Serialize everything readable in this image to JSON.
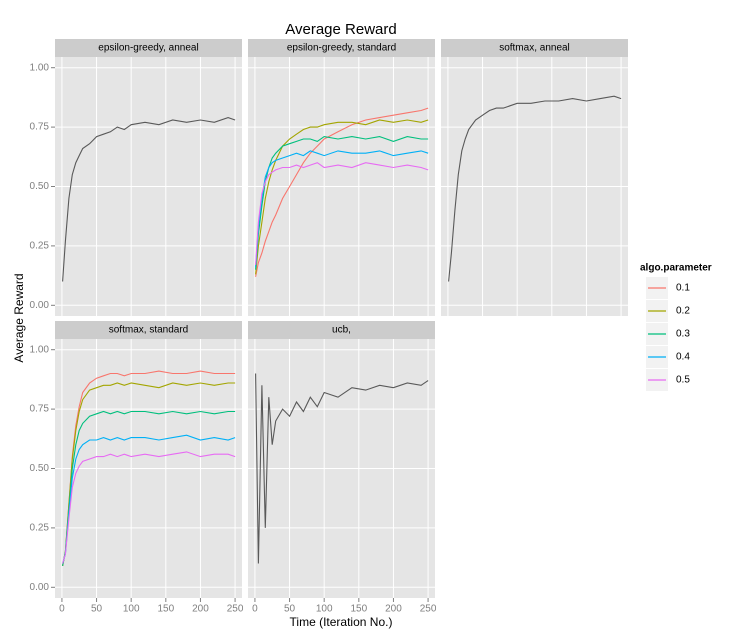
{
  "title": "Average Reward",
  "x_label": "Time (Iteration No.)",
  "y_label": "Average Reward",
  "legend_title": "algo.parameter",
  "legend": "right",
  "grid": true,
  "xlim": [
    -10,
    260
  ],
  "xticks": [
    0,
    50,
    100,
    150,
    200,
    250
  ],
  "ylim": [
    -0.045,
    1.045
  ],
  "yticks": [
    {
      "value": 0,
      "label": "0.00"
    },
    {
      "value": 0.25,
      "label": "0.25"
    },
    {
      "value": 0.5,
      "label": "0.50"
    },
    {
      "value": 0.75,
      "label": "0.75"
    },
    {
      "value": 1,
      "label": "1.00"
    }
  ],
  "chart_data": [
    {
      "type": "line",
      "title": "epsilon-greedy, anneal",
      "x": [
        1,
        5,
        10,
        15,
        20,
        25,
        30,
        40,
        50,
        60,
        70,
        80,
        90,
        100,
        120,
        140,
        160,
        180,
        200,
        220,
        240,
        250
      ],
      "series": [
        {
          "color": "#595959",
          "values": [
            0.1,
            0.27,
            0.45,
            0.55,
            0.6,
            0.63,
            0.66,
            0.68,
            0.71,
            0.72,
            0.73,
            0.75,
            0.74,
            0.76,
            0.77,
            0.76,
            0.78,
            0.77,
            0.78,
            0.77,
            0.79,
            0.78
          ]
        }
      ]
    },
    {
      "type": "line",
      "title": "epsilon-greedy, standard",
      "x": [
        1,
        5,
        10,
        15,
        20,
        25,
        30,
        40,
        50,
        60,
        70,
        80,
        90,
        100,
        120,
        140,
        160,
        180,
        200,
        220,
        240,
        250
      ],
      "series": [
        {
          "name": "0.1",
          "color": "#F8766D",
          "values": [
            0.12,
            0.18,
            0.22,
            0.27,
            0.31,
            0.35,
            0.38,
            0.45,
            0.5,
            0.55,
            0.6,
            0.64,
            0.67,
            0.7,
            0.73,
            0.76,
            0.78,
            0.79,
            0.8,
            0.81,
            0.82,
            0.83
          ]
        },
        {
          "name": "0.2",
          "color": "#A3A500",
          "values": [
            0.13,
            0.25,
            0.35,
            0.45,
            0.52,
            0.57,
            0.61,
            0.67,
            0.7,
            0.72,
            0.74,
            0.75,
            0.75,
            0.76,
            0.77,
            0.77,
            0.76,
            0.78,
            0.77,
            0.78,
            0.77,
            0.78
          ]
        },
        {
          "name": "0.3",
          "color": "#00BF7D",
          "values": [
            0.15,
            0.3,
            0.42,
            0.52,
            0.58,
            0.62,
            0.64,
            0.67,
            0.68,
            0.69,
            0.7,
            0.7,
            0.69,
            0.71,
            0.7,
            0.71,
            0.7,
            0.71,
            0.69,
            0.71,
            0.7,
            0.7
          ]
        },
        {
          "name": "0.4",
          "color": "#00B0F6",
          "values": [
            0.16,
            0.33,
            0.45,
            0.54,
            0.58,
            0.6,
            0.61,
            0.62,
            0.63,
            0.64,
            0.63,
            0.65,
            0.64,
            0.63,
            0.65,
            0.64,
            0.64,
            0.65,
            0.63,
            0.64,
            0.65,
            0.64
          ]
        },
        {
          "name": "0.5",
          "color": "#E76BF3",
          "values": [
            0.17,
            0.35,
            0.47,
            0.52,
            0.55,
            0.56,
            0.57,
            0.58,
            0.58,
            0.59,
            0.58,
            0.59,
            0.6,
            0.58,
            0.59,
            0.58,
            0.6,
            0.59,
            0.58,
            0.59,
            0.58,
            0.57
          ]
        }
      ]
    },
    {
      "type": "line",
      "title": "softmax, anneal",
      "x": [
        1,
        5,
        10,
        15,
        20,
        25,
        30,
        40,
        50,
        60,
        70,
        80,
        90,
        100,
        120,
        140,
        160,
        180,
        200,
        220,
        240,
        250
      ],
      "series": [
        {
          "color": "#595959",
          "values": [
            0.1,
            0.22,
            0.4,
            0.55,
            0.65,
            0.7,
            0.74,
            0.78,
            0.8,
            0.82,
            0.83,
            0.83,
            0.84,
            0.85,
            0.85,
            0.86,
            0.86,
            0.87,
            0.86,
            0.87,
            0.88,
            0.87
          ]
        }
      ]
    },
    {
      "type": "line",
      "title": "softmax, standard",
      "x": [
        1,
        5,
        10,
        15,
        20,
        25,
        30,
        40,
        50,
        60,
        70,
        80,
        90,
        100,
        120,
        140,
        160,
        180,
        200,
        220,
        240,
        250
      ],
      "series": [
        {
          "name": "0.1",
          "color": "#F8766D",
          "values": [
            0.09,
            0.15,
            0.35,
            0.55,
            0.68,
            0.76,
            0.82,
            0.86,
            0.88,
            0.89,
            0.9,
            0.9,
            0.89,
            0.9,
            0.9,
            0.91,
            0.9,
            0.9,
            0.91,
            0.9,
            0.9,
            0.9
          ]
        },
        {
          "name": "0.2",
          "color": "#A3A500",
          "values": [
            0.09,
            0.15,
            0.35,
            0.54,
            0.66,
            0.74,
            0.79,
            0.83,
            0.84,
            0.85,
            0.85,
            0.86,
            0.85,
            0.86,
            0.85,
            0.84,
            0.86,
            0.85,
            0.86,
            0.85,
            0.86,
            0.86
          ]
        },
        {
          "name": "0.3",
          "color": "#00BF7D",
          "values": [
            0.09,
            0.15,
            0.33,
            0.5,
            0.6,
            0.66,
            0.69,
            0.72,
            0.73,
            0.74,
            0.73,
            0.74,
            0.73,
            0.74,
            0.74,
            0.73,
            0.74,
            0.73,
            0.74,
            0.73,
            0.74,
            0.74
          ]
        },
        {
          "name": "0.4",
          "color": "#00B0F6",
          "values": [
            0.1,
            0.14,
            0.31,
            0.46,
            0.54,
            0.58,
            0.6,
            0.62,
            0.62,
            0.63,
            0.62,
            0.63,
            0.62,
            0.63,
            0.63,
            0.62,
            0.63,
            0.64,
            0.62,
            0.63,
            0.62,
            0.63
          ]
        },
        {
          "name": "0.5",
          "color": "#E76BF3",
          "values": [
            0.1,
            0.14,
            0.29,
            0.42,
            0.48,
            0.51,
            0.53,
            0.54,
            0.55,
            0.55,
            0.56,
            0.55,
            0.56,
            0.55,
            0.56,
            0.55,
            0.56,
            0.57,
            0.55,
            0.56,
            0.56,
            0.55
          ]
        }
      ]
    },
    {
      "type": "line",
      "title": "ucb,",
      "x": [
        1,
        5,
        10,
        15,
        20,
        25,
        30,
        40,
        50,
        60,
        70,
        80,
        90,
        100,
        120,
        140,
        160,
        180,
        200,
        220,
        240,
        250
      ],
      "series": [
        {
          "color": "#595959",
          "values": [
            0.9,
            0.1,
            0.85,
            0.25,
            0.8,
            0.6,
            0.7,
            0.75,
            0.72,
            0.78,
            0.74,
            0.8,
            0.76,
            0.82,
            0.8,
            0.84,
            0.83,
            0.85,
            0.84,
            0.86,
            0.85,
            0.87
          ]
        }
      ]
    }
  ]
}
